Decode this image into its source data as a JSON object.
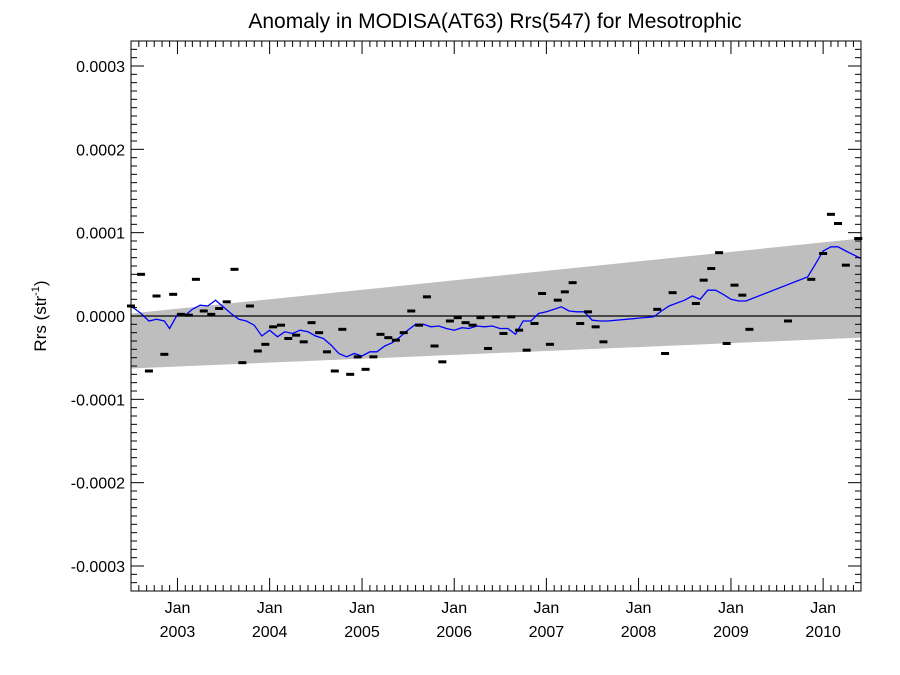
{
  "chart_data": {
    "type": "scatter",
    "title": "Anomaly in MODISA(AT63) Rrs(547) for Mesotrophic",
    "ylabel_main": "Rrs (str",
    "ylabel_sup": "-1",
    "ylabel_close": ")",
    "ylim": [
      -0.00033,
      0.00033
    ],
    "xlim": [
      "2002-07-01",
      "2010-05-31"
    ],
    "grid": false,
    "y_ticks": [
      {
        "value": 0.0003,
        "label": "0.0003"
      },
      {
        "value": 0.0002,
        "label": "0.0002"
      },
      {
        "value": 0.0001,
        "label": "0.0001"
      },
      {
        "value": 0.0,
        "label": "0.0000"
      },
      {
        "value": -0.0001,
        "label": "-0.0001"
      },
      {
        "value": -0.0002,
        "label": "-0.0002"
      },
      {
        "value": -0.0003,
        "label": "-0.0003"
      }
    ],
    "x_ticks": [
      {
        "date": "2003-01-01",
        "month": "Jan",
        "year": "2003"
      },
      {
        "date": "2004-01-01",
        "month": "Jan",
        "year": "2004"
      },
      {
        "date": "2005-01-01",
        "month": "Jan",
        "year": "2005"
      },
      {
        "date": "2006-01-01",
        "month": "Jan",
        "year": "2006"
      },
      {
        "date": "2007-01-01",
        "month": "Jan",
        "year": "2007"
      },
      {
        "date": "2008-01-01",
        "month": "Jan",
        "year": "2008"
      },
      {
        "date": "2009-01-01",
        "month": "Jan",
        "year": "2009"
      },
      {
        "date": "2010-01-01",
        "month": "Jan",
        "year": "2010"
      }
    ],
    "uncertainty_band": {
      "x": [
        "2002-07-01",
        "2010-05-31"
      ],
      "lower": [
        -6.3e-05,
        -2.6e-05
      ],
      "upper": [
        3e-06,
        9.3e-05
      ],
      "color": "#bebebe"
    },
    "zero_line": 0.0,
    "series": [
      {
        "kind": "points",
        "color": "#000000",
        "points": [
          {
            "x": "2002-07-01",
            "y": 1.2e-05
          },
          {
            "x": "2002-08-10",
            "y": 5e-05
          },
          {
            "x": "2002-09-10",
            "y": -6.6e-05
          },
          {
            "x": "2002-10-10",
            "y": 2.4e-05
          },
          {
            "x": "2002-11-10",
            "y": -4.6e-05
          },
          {
            "x": "2002-12-15",
            "y": 2.6e-05
          },
          {
            "x": "2003-01-15",
            "y": 2e-06
          },
          {
            "x": "2003-02-15",
            "y": 1e-06
          },
          {
            "x": "2003-03-15",
            "y": 4.4e-05
          },
          {
            "x": "2003-04-15",
            "y": 6e-06
          },
          {
            "x": "2003-05-15",
            "y": 2e-06
          },
          {
            "x": "2003-06-15",
            "y": 9e-06
          },
          {
            "x": "2003-07-15",
            "y": 1.7e-05
          },
          {
            "x": "2003-08-15",
            "y": 5.6e-05
          },
          {
            "x": "2003-09-15",
            "y": -5.6e-05
          },
          {
            "x": "2003-10-15",
            "y": 1.2e-05
          },
          {
            "x": "2003-11-15",
            "y": -4.2e-05
          },
          {
            "x": "2003-12-15",
            "y": -3.4e-05
          },
          {
            "x": "2004-01-15",
            "y": -1.3e-05
          },
          {
            "x": "2004-02-15",
            "y": -1.1e-05
          },
          {
            "x": "2004-03-15",
            "y": -2.7e-05
          },
          {
            "x": "2004-04-15",
            "y": -2.3e-05
          },
          {
            "x": "2004-05-15",
            "y": -3.1e-05
          },
          {
            "x": "2004-06-15",
            "y": -8e-06
          },
          {
            "x": "2004-07-15",
            "y": -2e-05
          },
          {
            "x": "2004-08-15",
            "y": -4.3e-05
          },
          {
            "x": "2004-09-15",
            "y": -6.6e-05
          },
          {
            "x": "2004-10-15",
            "y": -1.6e-05
          },
          {
            "x": "2004-11-15",
            "y": -7e-05
          },
          {
            "x": "2004-12-15",
            "y": -4.9e-05
          },
          {
            "x": "2005-01-15",
            "y": -6.4e-05
          },
          {
            "x": "2005-02-15",
            "y": -4.9e-05
          },
          {
            "x": "2005-03-15",
            "y": -2.2e-05
          },
          {
            "x": "2005-04-15",
            "y": -2.6e-05
          },
          {
            "x": "2005-05-15",
            "y": -2.9e-05
          },
          {
            "x": "2005-06-15",
            "y": -2e-05
          },
          {
            "x": "2005-07-15",
            "y": 6e-06
          },
          {
            "x": "2005-08-15",
            "y": -1.1e-05
          },
          {
            "x": "2005-09-15",
            "y": 2.3e-05
          },
          {
            "x": "2005-10-15",
            "y": -3.6e-05
          },
          {
            "x": "2005-11-15",
            "y": -5.5e-05
          },
          {
            "x": "2005-12-15",
            "y": -6e-06
          },
          {
            "x": "2006-01-15",
            "y": -2e-06
          },
          {
            "x": "2006-02-15",
            "y": -8e-06
          },
          {
            "x": "2006-03-15",
            "y": -1.1e-05
          },
          {
            "x": "2006-04-15",
            "y": -2e-06
          },
          {
            "x": "2006-05-15",
            "y": -3.9e-05
          },
          {
            "x": "2006-06-15",
            "y": -1e-06
          },
          {
            "x": "2006-07-15",
            "y": -2.1e-05
          },
          {
            "x": "2006-08-15",
            "y": -1e-06
          },
          {
            "x": "2006-09-15",
            "y": -1.7e-05
          },
          {
            "x": "2006-10-15",
            "y": -4.1e-05
          },
          {
            "x": "2006-11-15",
            "y": -9e-06
          },
          {
            "x": "2006-12-15",
            "y": 2.7e-05
          },
          {
            "x": "2007-01-15",
            "y": -3.4e-05
          },
          {
            "x": "2007-02-15",
            "y": 1.9e-05
          },
          {
            "x": "2007-03-15",
            "y": 2.9e-05
          },
          {
            "x": "2007-04-15",
            "y": 4e-05
          },
          {
            "x": "2007-05-15",
            "y": -9e-06
          },
          {
            "x": "2007-06-15",
            "y": 5e-06
          },
          {
            "x": "2007-07-15",
            "y": -1.3e-05
          },
          {
            "x": "2007-08-15",
            "y": -3.1e-05
          },
          {
            "x": "2008-03-15",
            "y": 8e-06
          },
          {
            "x": "2008-04-15",
            "y": -4.5e-05
          },
          {
            "x": "2008-05-15",
            "y": 2.8e-05
          },
          {
            "x": "2008-08-15",
            "y": 1.5e-05
          },
          {
            "x": "2008-09-15",
            "y": 4.3e-05
          },
          {
            "x": "2008-10-15",
            "y": 5.7e-05
          },
          {
            "x": "2008-11-15",
            "y": 7.6e-05
          },
          {
            "x": "2008-12-15",
            "y": -3.3e-05
          },
          {
            "x": "2009-01-15",
            "y": 3.7e-05
          },
          {
            "x": "2009-02-15",
            "y": 2.5e-05
          },
          {
            "x": "2009-03-15",
            "y": -1.6e-05
          },
          {
            "x": "2009-08-15",
            "y": -6e-06
          },
          {
            "x": "2009-11-15",
            "y": 4.4e-05
          },
          {
            "x": "2010-01-01",
            "y": 7.5e-05
          },
          {
            "x": "2010-02-01",
            "y": 0.000122
          },
          {
            "x": "2010-03-01",
            "y": 0.000111
          },
          {
            "x": "2010-04-01",
            "y": 6.1e-05
          },
          {
            "x": "2010-05-20",
            "y": 9.3e-05
          }
        ]
      },
      {
        "kind": "line",
        "color": "#0000ff",
        "points": [
          {
            "x": "2002-07-01",
            "y": 1.2e-05
          },
          {
            "x": "2002-08-10",
            "y": 3e-06
          },
          {
            "x": "2002-09-10",
            "y": -6e-06
          },
          {
            "x": "2002-10-10",
            "y": -4e-06
          },
          {
            "x": "2002-11-10",
            "y": -6e-06
          },
          {
            "x": "2002-12-01",
            "y": -1.5e-05
          },
          {
            "x": "2003-01-01",
            "y": 2e-06
          },
          {
            "x": "2003-02-01",
            "y": 1e-06
          },
          {
            "x": "2003-03-01",
            "y": 8e-06
          },
          {
            "x": "2003-04-01",
            "y": 1.3e-05
          },
          {
            "x": "2003-05-01",
            "y": 1.2e-05
          },
          {
            "x": "2003-06-01",
            "y": 1.9e-05
          },
          {
            "x": "2003-07-01",
            "y": 1.1e-05
          },
          {
            "x": "2003-08-01",
            "y": 3e-06
          },
          {
            "x": "2003-09-01",
            "y": -4e-06
          },
          {
            "x": "2003-10-01",
            "y": -6e-06
          },
          {
            "x": "2003-11-01",
            "y": -1.1e-05
          },
          {
            "x": "2003-12-01",
            "y": -2.4e-05
          },
          {
            "x": "2004-01-01",
            "y": -1.7e-05
          },
          {
            "x": "2004-02-01",
            "y": -2.5e-05
          },
          {
            "x": "2004-03-01",
            "y": -1.9e-05
          },
          {
            "x": "2004-04-01",
            "y": -2.1e-05
          },
          {
            "x": "2004-05-01",
            "y": -1.7e-05
          },
          {
            "x": "2004-06-01",
            "y": -1.9e-05
          },
          {
            "x": "2004-07-01",
            "y": -2.4e-05
          },
          {
            "x": "2004-08-01",
            "y": -2.7e-05
          },
          {
            "x": "2004-09-01",
            "y": -3.5e-05
          },
          {
            "x": "2004-10-01",
            "y": -4.5e-05
          },
          {
            "x": "2004-11-01",
            "y": -4.9e-05
          },
          {
            "x": "2004-12-01",
            "y": -4.5e-05
          },
          {
            "x": "2005-01-01",
            "y": -4.8e-05
          },
          {
            "x": "2005-02-01",
            "y": -4.3e-05
          },
          {
            "x": "2005-03-01",
            "y": -4.3e-05
          },
          {
            "x": "2005-04-01",
            "y": -3.6e-05
          },
          {
            "x": "2005-05-01",
            "y": -3.2e-05
          },
          {
            "x": "2005-06-01",
            "y": -2.5e-05
          },
          {
            "x": "2005-07-01",
            "y": -1.7e-05
          },
          {
            "x": "2005-08-01",
            "y": -1e-05
          },
          {
            "x": "2005-09-01",
            "y": -1e-05
          },
          {
            "x": "2005-10-01",
            "y": -1.3e-05
          },
          {
            "x": "2005-11-01",
            "y": -1.2e-05
          },
          {
            "x": "2005-12-01",
            "y": -1.5e-05
          },
          {
            "x": "2006-01-01",
            "y": -1.7e-05
          },
          {
            "x": "2006-02-01",
            "y": -1.4e-05
          },
          {
            "x": "2006-03-01",
            "y": -1.5e-05
          },
          {
            "x": "2006-04-01",
            "y": -1.2e-05
          },
          {
            "x": "2006-05-01",
            "y": -1.3e-05
          },
          {
            "x": "2006-06-01",
            "y": -1.2e-05
          },
          {
            "x": "2006-07-01",
            "y": -1.5e-05
          },
          {
            "x": "2006-08-01",
            "y": -1.5e-05
          },
          {
            "x": "2006-09-01",
            "y": -2.2e-05
          },
          {
            "x": "2006-10-01",
            "y": -6e-06
          },
          {
            "x": "2006-11-01",
            "y": -6e-06
          },
          {
            "x": "2006-12-01",
            "y": 3e-06
          },
          {
            "x": "2007-01-01",
            "y": 5e-06
          },
          {
            "x": "2007-02-01",
            "y": 8e-06
          },
          {
            "x": "2007-03-01",
            "y": 1.1e-05
          },
          {
            "x": "2007-04-01",
            "y": 6e-06
          },
          {
            "x": "2007-05-01",
            "y": 5e-06
          },
          {
            "x": "2007-06-01",
            "y": 5e-06
          },
          {
            "x": "2007-07-01",
            "y": -5e-06
          },
          {
            "x": "2007-08-01",
            "y": -6e-06
          },
          {
            "x": "2007-09-01",
            "y": -6e-06
          },
          {
            "x": "2008-03-01",
            "y": -1e-06
          },
          {
            "x": "2008-04-01",
            "y": 6e-06
          },
          {
            "x": "2008-05-01",
            "y": 1.2e-05
          },
          {
            "x": "2008-07-01",
            "y": 1.9e-05
          },
          {
            "x": "2008-08-01",
            "y": 2.4e-05
          },
          {
            "x": "2008-09-01",
            "y": 2e-05
          },
          {
            "x": "2008-10-01",
            "y": 3.1e-05
          },
          {
            "x": "2008-11-01",
            "y": 3.1e-05
          },
          {
            "x": "2008-12-01",
            "y": 2.6e-05
          },
          {
            "x": "2009-01-01",
            "y": 2e-05
          },
          {
            "x": "2009-02-01",
            "y": 1.8e-05
          },
          {
            "x": "2009-03-01",
            "y": 1.8e-05
          },
          {
            "x": "2009-11-01",
            "y": 4.7e-05
          },
          {
            "x": "2009-12-01",
            "y": 6.2e-05
          },
          {
            "x": "2010-01-01",
            "y": 7.8e-05
          },
          {
            "x": "2010-02-01",
            "y": 8.3e-05
          },
          {
            "x": "2010-03-01",
            "y": 8.3e-05
          },
          {
            "x": "2010-04-01",
            "y": 7.8e-05
          },
          {
            "x": "2010-05-31",
            "y": 6.9e-05
          }
        ]
      }
    ]
  }
}
